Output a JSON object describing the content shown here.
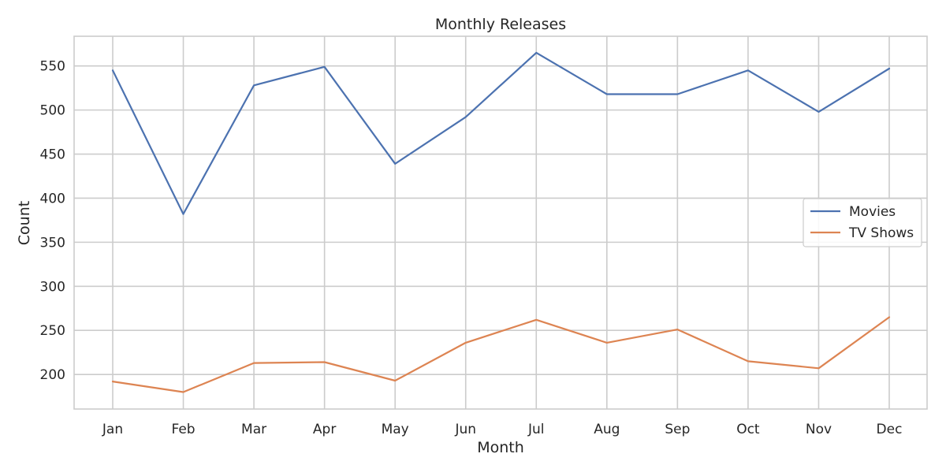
{
  "chart_data": {
    "type": "line",
    "title": "Monthly Releases",
    "xlabel": "Month",
    "ylabel": "Count",
    "categories": [
      "Jan",
      "Feb",
      "Mar",
      "Apr",
      "May",
      "Jun",
      "Jul",
      "Aug",
      "Sep",
      "Oct",
      "Nov",
      "Dec"
    ],
    "yticks": [
      200,
      250,
      300,
      350,
      400,
      450,
      500,
      550
    ],
    "ylim": [
      160.8,
      583.7
    ],
    "grid": true,
    "legend_position": "center-right",
    "series": [
      {
        "name": "Movies",
        "color": "#4c72b0",
        "values": [
          545,
          382,
          528,
          549,
          439,
          492,
          565,
          518,
          518,
          545,
          498,
          547
        ]
      },
      {
        "name": "TV Shows",
        "color": "#dd8452",
        "values": [
          192,
          180,
          213,
          214,
          193,
          236,
          262,
          236,
          251,
          215,
          207,
          265
        ]
      }
    ]
  }
}
